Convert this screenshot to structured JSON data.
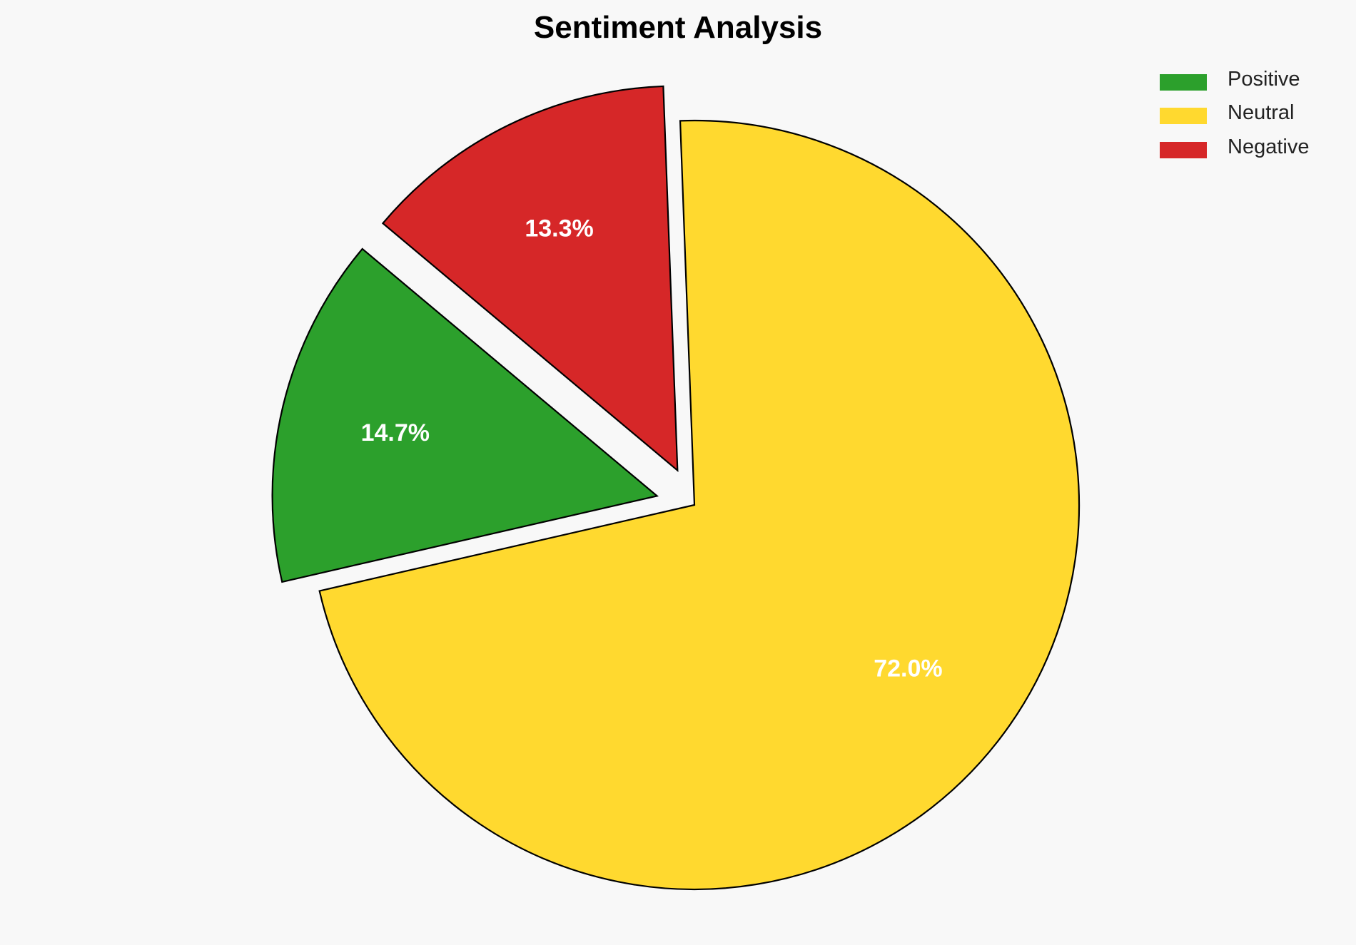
{
  "chart_data": {
    "type": "pie",
    "title": "Sentiment Analysis",
    "categories": [
      "Positive",
      "Neutral",
      "Negative"
    ],
    "values": [
      14.7,
      72.0,
      13.3
    ],
    "labels": [
      "14.7%",
      "72.0%",
      "13.3%"
    ],
    "colors": [
      "#2ca02c",
      "#ffd92f",
      "#d62728"
    ],
    "explode": [
      0.1,
      0,
      0.1
    ],
    "start_angle": 140,
    "legend_position": "top-right",
    "legend": [
      "Positive",
      "Neutral",
      "Negative"
    ]
  }
}
